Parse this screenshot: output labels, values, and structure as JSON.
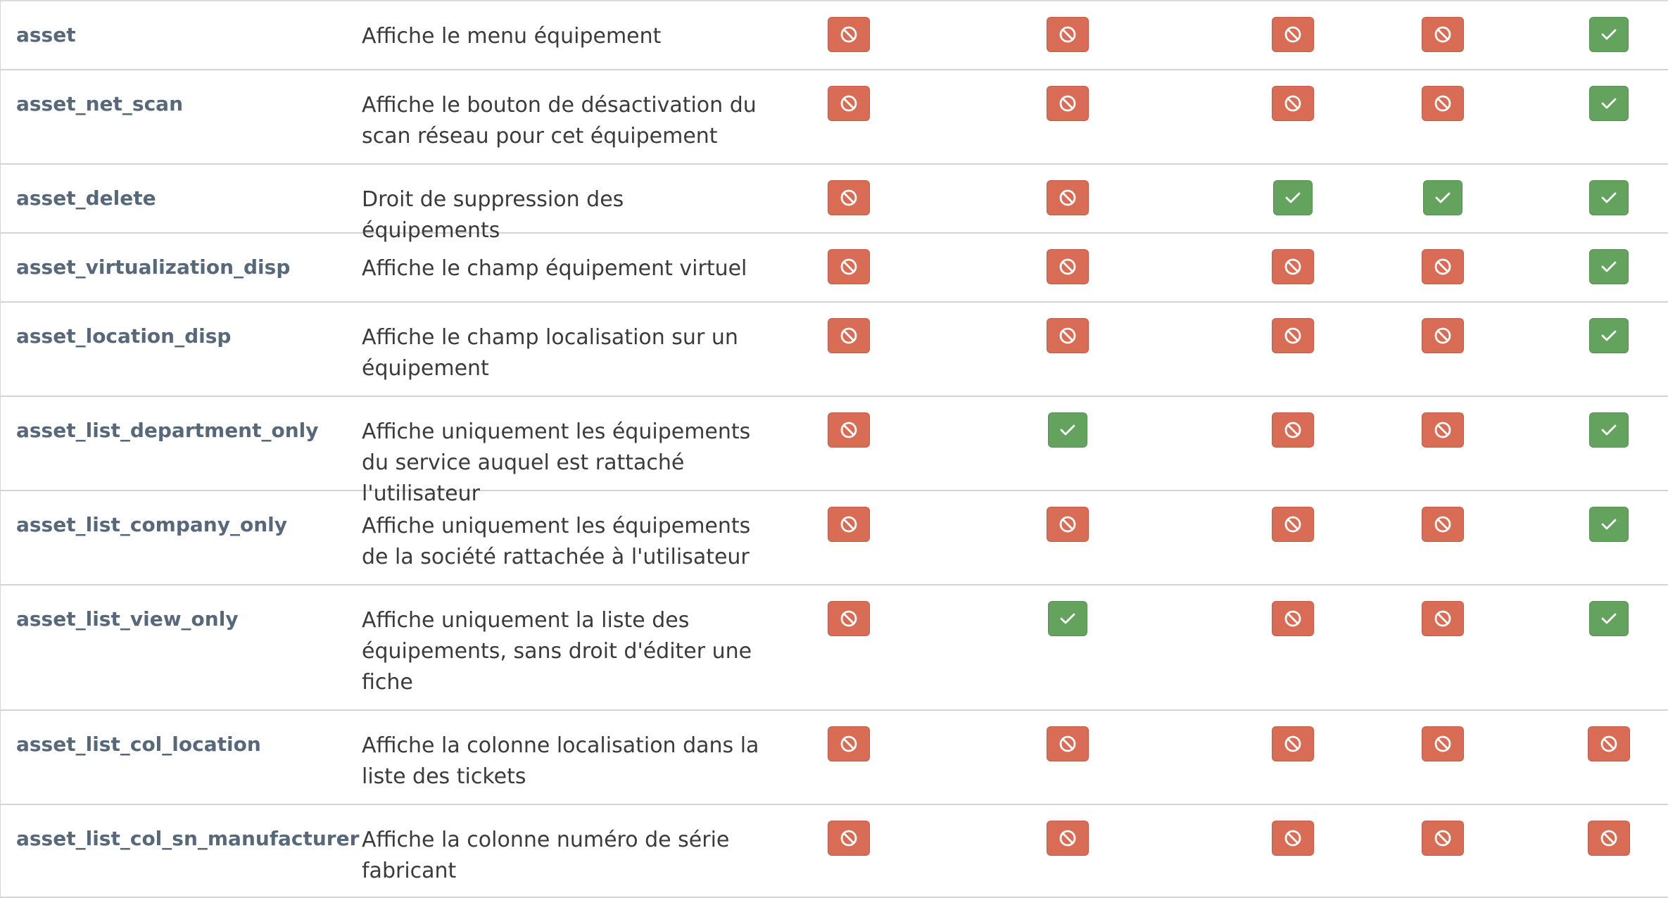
{
  "colors": {
    "denied": "#d96c55",
    "granted": "#63a35e",
    "name_text": "#58687b",
    "desc_text": "#3b3b3b",
    "row_border": "#d5d5d5"
  },
  "icons": {
    "denied": "ban-icon",
    "granted": "check-icon"
  },
  "rows": [
    {
      "name": "asset",
      "description": "Affiche le menu équipement",
      "permissions": [
        "no",
        "no",
        "no",
        "no",
        "yes"
      ]
    },
    {
      "name": "asset_net_scan",
      "description": "Affiche le bouton de désactivation du scan réseau pour cet équipement",
      "permissions": [
        "no",
        "no",
        "no",
        "no",
        "yes"
      ]
    },
    {
      "name": "asset_delete",
      "description": "Droit de suppression des équipements",
      "permissions": [
        "no",
        "no",
        "yes",
        "yes",
        "yes"
      ]
    },
    {
      "name": "asset_virtualization_disp",
      "description": "Affiche le champ équipement virtuel",
      "permissions": [
        "no",
        "no",
        "no",
        "no",
        "yes"
      ]
    },
    {
      "name": "asset_location_disp",
      "description": "Affiche le champ localisation sur un équipement",
      "permissions": [
        "no",
        "no",
        "no",
        "no",
        "yes"
      ]
    },
    {
      "name": "asset_list_department_only",
      "description": "Affiche uniquement les équipements du service auquel est rattaché l'utilisateur",
      "permissions": [
        "no",
        "yes",
        "no",
        "no",
        "yes"
      ]
    },
    {
      "name": "asset_list_company_only",
      "description": "Affiche uniquement les équipements de la société rattachée à l'utilisateur",
      "permissions": [
        "no",
        "no",
        "no",
        "no",
        "yes"
      ]
    },
    {
      "name": "asset_list_view_only",
      "description": "Affiche uniquement la liste des équipements, sans droit d'éditer une fiche",
      "permissions": [
        "no",
        "yes",
        "no",
        "no",
        "yes"
      ]
    },
    {
      "name": "asset_list_col_location",
      "description": "Affiche la colonne localisation dans la liste des tickets",
      "permissions": [
        "no",
        "no",
        "no",
        "no",
        "no"
      ]
    },
    {
      "name": "asset_list_col_sn_manufacturer",
      "description": "Affiche la colonne numéro de série fabricant",
      "permissions": [
        "no",
        "no",
        "no",
        "no",
        "no"
      ]
    }
  ]
}
